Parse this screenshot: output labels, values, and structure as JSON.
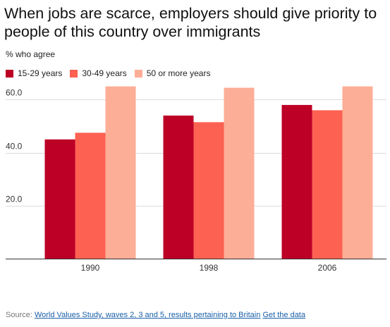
{
  "title": "When jobs are scarce, employers should give priority to people of this country over immigrants",
  "subtitle": "% who agree",
  "source": {
    "prefix": "Source: ",
    "link_text": "World Values Study, waves 2, 3 and 5, results pertaining to Britain",
    "data_link_text": "Get the data"
  },
  "chart_data": {
    "type": "bar",
    "title": "When jobs are scarce, employers should give priority to people of this country over immigrants",
    "ylabel": "% who agree",
    "xlabel": "",
    "categories": [
      "1990",
      "1998",
      "2006"
    ],
    "series": [
      {
        "name": "15-29 years",
        "color": "#bd0026",
        "values": [
          45,
          54,
          58
        ]
      },
      {
        "name": "30-49 years",
        "color": "#fc6152",
        "values": [
          47.5,
          51.5,
          56
        ]
      },
      {
        "name": "50 or more years",
        "color": "#fdae96",
        "values": [
          65,
          64.5,
          65
        ]
      }
    ],
    "yticks": [
      {
        "value": 20,
        "label": "20.0"
      },
      {
        "value": 40,
        "label": "40.0"
      },
      {
        "value": 60,
        "label": "60.0"
      }
    ],
    "ylim": [
      0,
      66
    ],
    "grid": true,
    "legend_position": "top-left"
  }
}
